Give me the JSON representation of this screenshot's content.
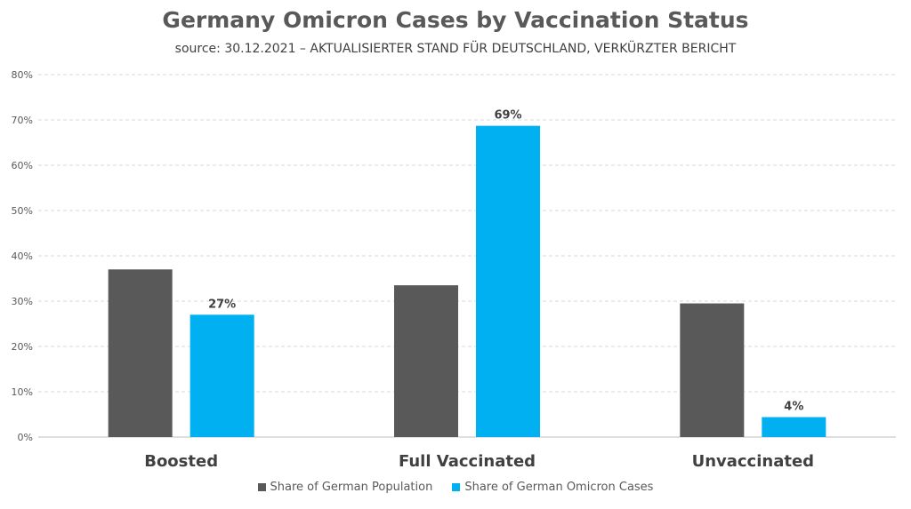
{
  "chart_data": {
    "type": "bar",
    "title": "Germany Omicron Cases by Vaccination Status",
    "subtitle": "source: 30.12.2021 – AKTUALISIERTER STAND FÜR DEUTSCHLAND, VERKÜRZTER BERICHT",
    "categories": [
      "Boosted",
      "Full Vaccinated",
      "Unvaccinated"
    ],
    "series": [
      {
        "name": "Share of German Population",
        "values": [
          37,
          33.5,
          29.5
        ],
        "color": "#595959",
        "labels": [
          "",
          "",
          ""
        ]
      },
      {
        "name": "Share of German Omicron Cases",
        "values": [
          27,
          68.7,
          4.4
        ],
        "color": "#00B0F0",
        "labels": [
          "27%",
          "69%",
          "4%"
        ]
      }
    ],
    "ylim": [
      0,
      80
    ],
    "yticks": [
      "0%",
      "10%",
      "20%",
      "30%",
      "40%",
      "50%",
      "60%",
      "70%",
      "80%"
    ],
    "grid": true,
    "legend_position": "bottom"
  }
}
